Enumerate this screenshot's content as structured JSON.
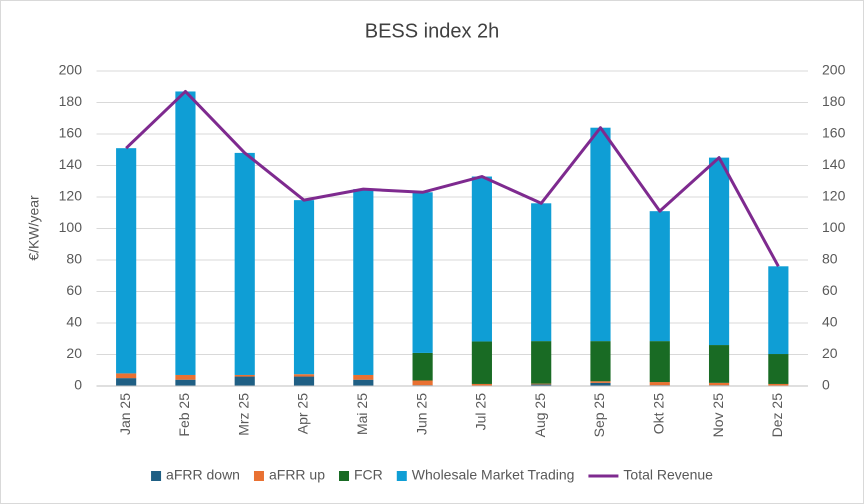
{
  "chart_data": {
    "type": "bar",
    "title": "BESS index 2h",
    "y_label": "€/KW/year",
    "categories": [
      "Jan 25",
      "Feb 25",
      "Mrz 25",
      "Apr 25",
      "Mai 25",
      "Jun 25",
      "Jul 25",
      "Aug 25",
      "Sep 25",
      "Okt 25",
      "Nov 25",
      "Dez 25"
    ],
    "stacked": true,
    "series": [
      {
        "name": "aFRR down",
        "color": "#1f5f84",
        "values": [
          5,
          4,
          6,
          6,
          4,
          0.5,
          0.3,
          1,
          2,
          0.5,
          0.5,
          0.3
        ]
      },
      {
        "name": "aFRR up",
        "color": "#e97132",
        "values": [
          3,
          3,
          1,
          1.5,
          3,
          3,
          1,
          0.5,
          1,
          2,
          1.5,
          1
        ]
      },
      {
        "name": "FCR",
        "color": "#196b24",
        "values": [
          0,
          0,
          0,
          0,
          0,
          17.5,
          27,
          27,
          25.5,
          26,
          24,
          19
        ]
      },
      {
        "name": "Wholesale Market Trading",
        "color": "#0f9ed5",
        "values": [
          143,
          180,
          141,
          110.5,
          118,
          102,
          104.7,
          87.5,
          135.5,
          82.5,
          119,
          55.7
        ]
      },
      {
        "name": "Total Revenue",
        "color": "#7e2a8f",
        "type": "line",
        "axis": "y2",
        "values": [
          151,
          187,
          148,
          118,
          125,
          123,
          133,
          116,
          164,
          111,
          145,
          76
        ]
      }
    ],
    "ylim": [
      0,
      200
    ],
    "yticks": [
      0,
      20,
      40,
      60,
      80,
      100,
      120,
      140,
      160,
      180,
      200
    ],
    "y2lim": [
      0,
      200
    ],
    "y2ticks": [
      0,
      20,
      40,
      60,
      80,
      100,
      120,
      140,
      160,
      180,
      200
    ],
    "grid": true,
    "legend": "bottom"
  }
}
